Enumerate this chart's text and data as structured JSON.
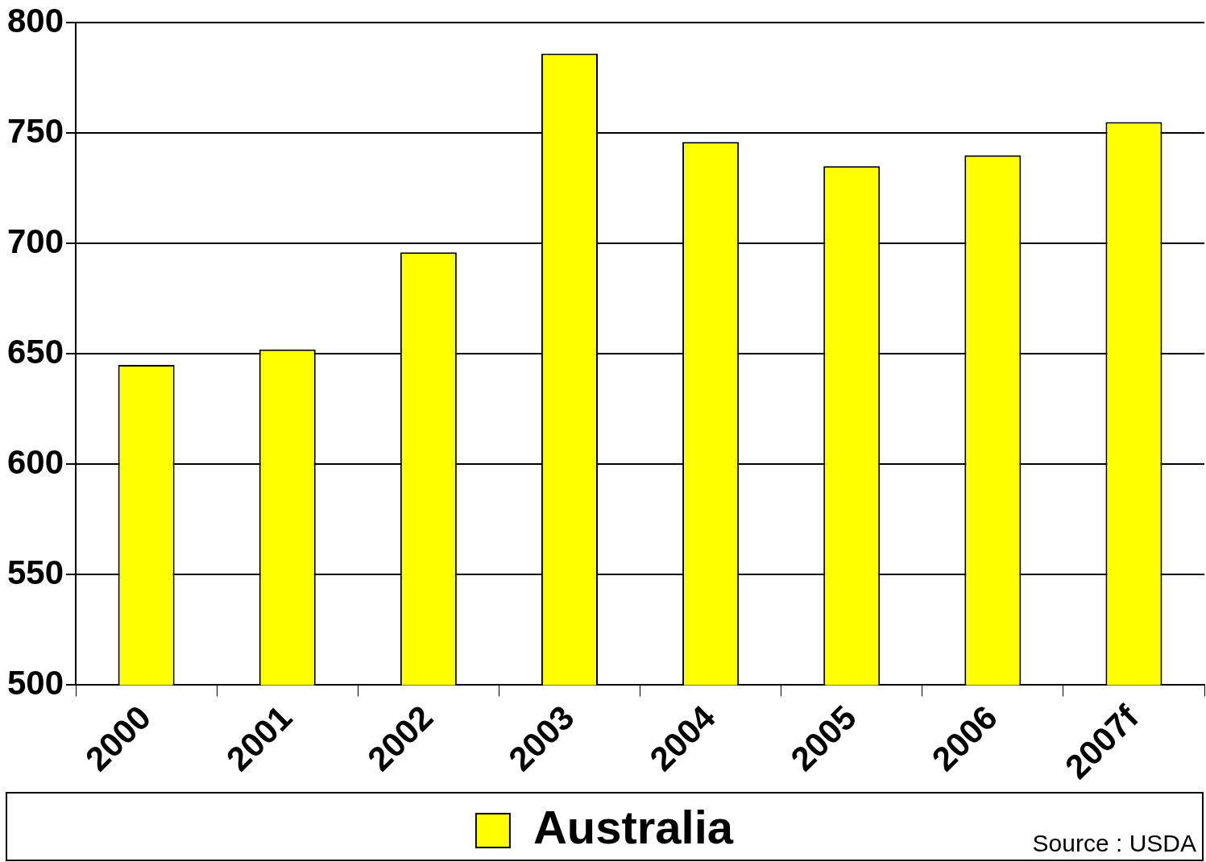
{
  "chart_data": {
    "type": "bar",
    "categories": [
      "2000",
      "2001",
      "2002",
      "2003",
      "2004",
      "2005",
      "2006",
      "2007f"
    ],
    "series": [
      {
        "name": "Australia",
        "color": "#ffff00",
        "values": [
          645,
          652,
          696,
          786,
          746,
          735,
          740,
          755
        ]
      }
    ],
    "ylim": [
      500,
      800
    ],
    "yticks": [
      500,
      550,
      600,
      650,
      700,
      750,
      800
    ],
    "grid": "y",
    "legend": "bottom",
    "annotations": [
      "Source : USDA"
    ]
  }
}
